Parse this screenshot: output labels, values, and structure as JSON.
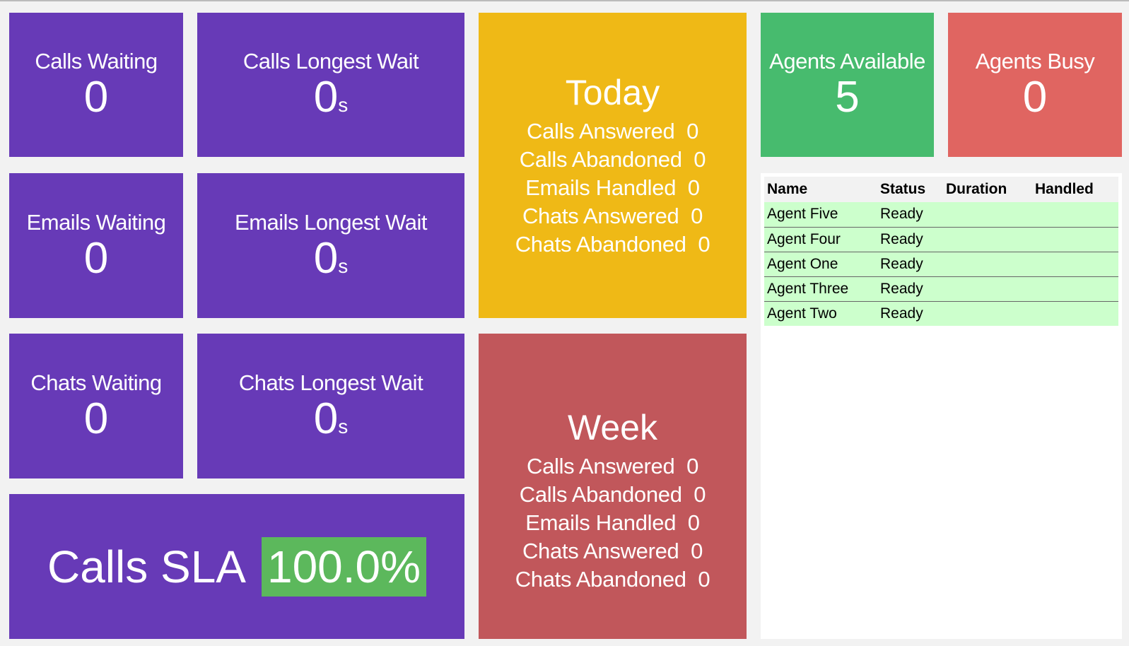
{
  "tiles": {
    "calls_waiting": {
      "label": "Calls Waiting",
      "value": "0"
    },
    "calls_longest": {
      "label": "Calls Longest Wait",
      "value": "0",
      "unit": "s"
    },
    "emails_waiting": {
      "label": "Emails Waiting",
      "value": "0"
    },
    "emails_longest": {
      "label": "Emails Longest Wait",
      "value": "0",
      "unit": "s"
    },
    "chats_waiting": {
      "label": "Chats Waiting",
      "value": "0"
    },
    "chats_longest": {
      "label": "Chats Longest Wait",
      "value": "0",
      "unit": "s"
    },
    "sla": {
      "label": "Calls SLA",
      "value": "100.0%"
    },
    "agents_available": {
      "label": "Agents Available",
      "value": "5"
    },
    "agents_busy": {
      "label": "Agents Busy",
      "value": "0"
    }
  },
  "today": {
    "title": "Today",
    "stats": [
      "Calls Answered  0",
      "Calls Abandoned  0",
      "Emails Handled  0",
      "Chats Answered  0",
      "Chats Abandoned  0"
    ]
  },
  "week": {
    "title": "Week",
    "stats": [
      "Calls Answered  0",
      "Calls Abandoned  0",
      "Emails Handled  0",
      "Chats Answered  0",
      "Chats Abandoned  0"
    ]
  },
  "agents_table": {
    "headers": [
      "Name",
      "Status",
      "Duration",
      "Handled"
    ],
    "rows": [
      {
        "name": "Agent Five",
        "status": "Ready",
        "duration": "",
        "handled": ""
      },
      {
        "name": "Agent Four",
        "status": "Ready",
        "duration": "",
        "handled": ""
      },
      {
        "name": "Agent One",
        "status": "Ready",
        "duration": "",
        "handled": ""
      },
      {
        "name": "Agent Three",
        "status": "Ready",
        "duration": "",
        "handled": ""
      },
      {
        "name": "Agent Two",
        "status": "Ready",
        "duration": "",
        "handled": ""
      }
    ]
  },
  "colors": {
    "purple": "#673ab7",
    "yellow": "#efb916",
    "week_red": "#c1575b",
    "green": "#47bb6e",
    "busy_red": "#e06561",
    "sla_green": "#5cb85c",
    "row_ready": "#ccffcc"
  }
}
